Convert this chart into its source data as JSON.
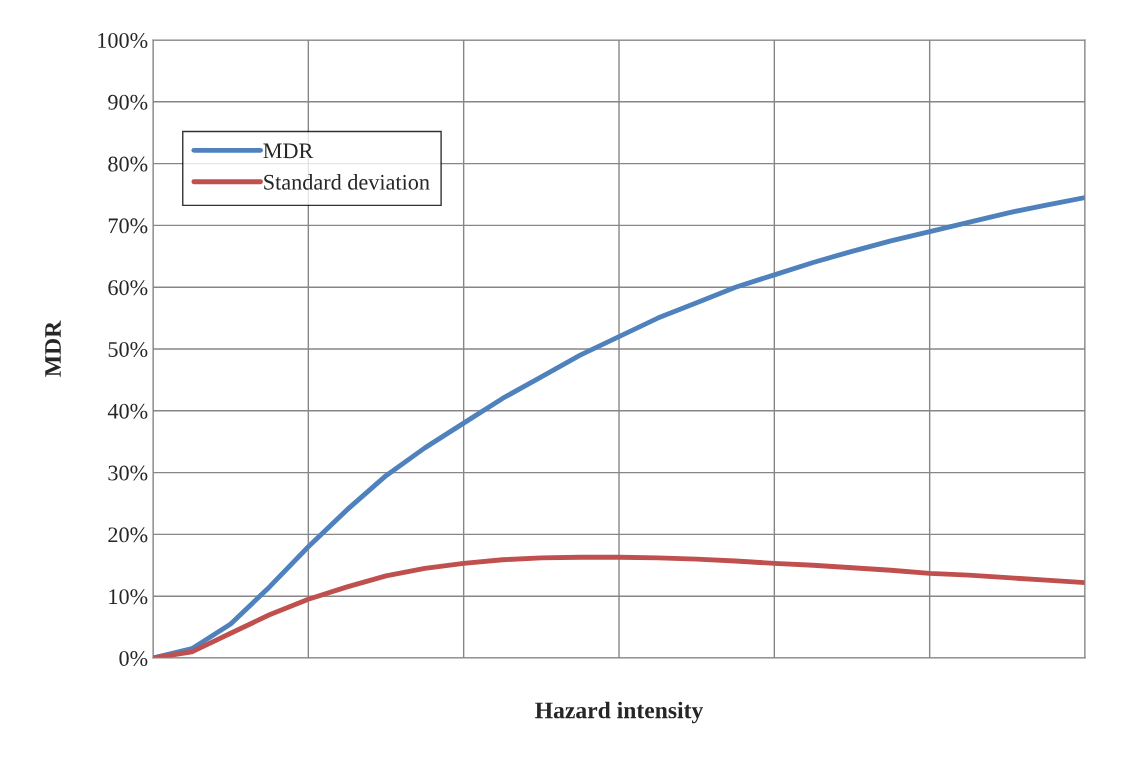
{
  "chart_data": {
    "type": "line",
    "xlabel": "Hazard intensity",
    "ylabel": "MDR",
    "categories": [
      null,
      null,
      null,
      null,
      null,
      null,
      null,
      null,
      null,
      null,
      null,
      null,
      null,
      null,
      null,
      null,
      null,
      null,
      null,
      null,
      null,
      null,
      null,
      null,
      null
    ],
    "series": [
      {
        "name": "MDR",
        "color": "#4f81bd",
        "values": [
          0,
          1.5,
          5.5,
          11.5,
          18,
          24,
          29.5,
          34,
          38,
          42,
          45.5,
          49,
          52,
          55,
          57.5,
          60,
          62,
          64,
          65.8,
          67.5,
          69,
          70.5,
          72,
          73.3,
          74.5
        ]
      },
      {
        "name": "Standard deviation",
        "color": "#c0504d",
        "values": [
          0,
          1,
          4,
          7,
          9.5,
          11.5,
          13.3,
          14.5,
          15.3,
          15.9,
          16.2,
          16.3,
          16.3,
          16.2,
          16,
          15.7,
          15.3,
          15,
          14.6,
          14.2,
          13.7,
          13.4,
          13,
          12.6,
          12.2
        ]
      }
    ],
    "ylim": [
      0,
      100
    ],
    "yticks": [
      {
        "value": 0,
        "label": "0%"
      },
      {
        "value": 10,
        "label": "10%"
      },
      {
        "value": 20,
        "label": "20%"
      },
      {
        "value": 30,
        "label": "30%"
      },
      {
        "value": 40,
        "label": "40%"
      },
      {
        "value": 50,
        "label": "50%"
      },
      {
        "value": 60,
        "label": "60%"
      },
      {
        "value": 70,
        "label": "70%"
      },
      {
        "value": 80,
        "label": "80%"
      },
      {
        "value": 90,
        "label": "90%"
      },
      {
        "value": 100,
        "label": "100%"
      }
    ],
    "tick_labels": "y",
    "grid": true,
    "legend": "top left",
    "line_style": "solid",
    "marker": "none"
  }
}
